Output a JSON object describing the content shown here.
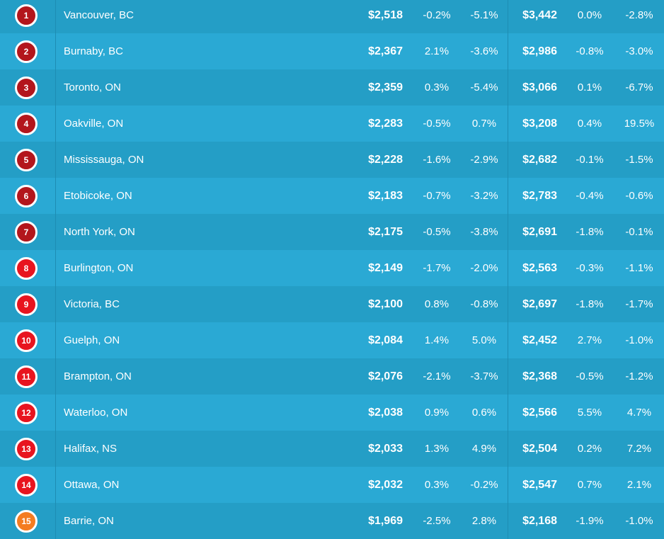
{
  "colors": {
    "rank_top": "#b3161c",
    "rank_mid": "#e8141f",
    "rank_low": "#f47c20",
    "row_dark": "#249ec6",
    "row_light": "#2aa9d4"
  },
  "rows": [
    {
      "rank": "1",
      "city": "Vancouver, BC",
      "price1": "$2,518",
      "m1": "-0.2%",
      "y1": "-5.1%",
      "price2": "$3,442",
      "m2": "0.0%",
      "y2": "-2.8%",
      "tier": "rank_top"
    },
    {
      "rank": "2",
      "city": "Burnaby, BC",
      "price1": "$2,367",
      "m1": "2.1%",
      "y1": "-3.6%",
      "price2": "$2,986",
      "m2": "-0.8%",
      "y2": "-3.0%",
      "tier": "rank_top"
    },
    {
      "rank": "3",
      "city": "Toronto, ON",
      "price1": "$2,359",
      "m1": "0.3%",
      "y1": "-5.4%",
      "price2": "$3,066",
      "m2": "0.1%",
      "y2": "-6.7%",
      "tier": "rank_top"
    },
    {
      "rank": "4",
      "city": "Oakville, ON",
      "price1": "$2,283",
      "m1": "-0.5%",
      "y1": "0.7%",
      "price2": "$3,208",
      "m2": "0.4%",
      "y2": "19.5%",
      "tier": "rank_top"
    },
    {
      "rank": "5",
      "city": "Mississauga, ON",
      "price1": "$2,228",
      "m1": "-1.6%",
      "y1": "-2.9%",
      "price2": "$2,682",
      "m2": "-0.1%",
      "y2": "-1.5%",
      "tier": "rank_top"
    },
    {
      "rank": "6",
      "city": "Etobicoke, ON",
      "price1": "$2,183",
      "m1": "-0.7%",
      "y1": "-3.2%",
      "price2": "$2,783",
      "m2": "-0.4%",
      "y2": "-0.6%",
      "tier": "rank_top"
    },
    {
      "rank": "7",
      "city": "North York, ON",
      "price1": "$2,175",
      "m1": "-0.5%",
      "y1": "-3.8%",
      "price2": "$2,691",
      "m2": "-1.8%",
      "y2": "-0.1%",
      "tier": "rank_top"
    },
    {
      "rank": "8",
      "city": "Burlington, ON",
      "price1": "$2,149",
      "m1": "-1.7%",
      "y1": "-2.0%",
      "price2": "$2,563",
      "m2": "-0.3%",
      "y2": "-1.1%",
      "tier": "rank_mid"
    },
    {
      "rank": "9",
      "city": "Victoria, BC",
      "price1": "$2,100",
      "m1": "0.8%",
      "y1": "-0.8%",
      "price2": "$2,697",
      "m2": "-1.8%",
      "y2": "-1.7%",
      "tier": "rank_mid"
    },
    {
      "rank": "10",
      "city": "Guelph, ON",
      "price1": "$2,084",
      "m1": "1.4%",
      "y1": "5.0%",
      "price2": "$2,452",
      "m2": "2.7%",
      "y2": "-1.0%",
      "tier": "rank_mid"
    },
    {
      "rank": "11",
      "city": "Brampton, ON",
      "price1": "$2,076",
      "m1": "-2.1%",
      "y1": "-3.7%",
      "price2": "$2,368",
      "m2": "-0.5%",
      "y2": "-1.2%",
      "tier": "rank_mid"
    },
    {
      "rank": "12",
      "city": "Waterloo, ON",
      "price1": "$2,038",
      "m1": "0.9%",
      "y1": "0.6%",
      "price2": "$2,566",
      "m2": "5.5%",
      "y2": "4.7%",
      "tier": "rank_mid"
    },
    {
      "rank": "13",
      "city": "Halifax, NS",
      "price1": "$2,033",
      "m1": "1.3%",
      "y1": "4.9%",
      "price2": "$2,504",
      "m2": "0.2%",
      "y2": "7.2%",
      "tier": "rank_mid"
    },
    {
      "rank": "14",
      "city": "Ottawa, ON",
      "price1": "$2,032",
      "m1": "0.3%",
      "y1": "-0.2%",
      "price2": "$2,547",
      "m2": "0.7%",
      "y2": "2.1%",
      "tier": "rank_mid"
    },
    {
      "rank": "15",
      "city": "Barrie, ON",
      "price1": "$1,969",
      "m1": "-2.5%",
      "y1": "2.8%",
      "price2": "$2,168",
      "m2": "-1.9%",
      "y2": "-1.0%",
      "tier": "rank_low"
    }
  ]
}
